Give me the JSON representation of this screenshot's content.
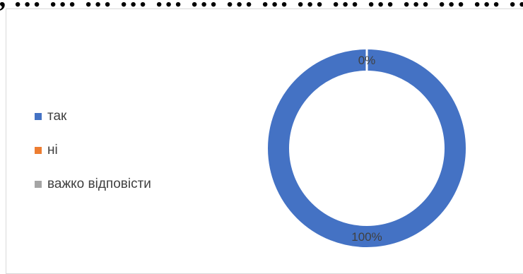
{
  "page": {
    "top_text": ", … … … … … … … … … … … … … … … … … … … … … … … … … … … … … … … … … … … … … … … … … … … … … … … … … … …"
  },
  "chart_data": {
    "type": "pie",
    "donut": true,
    "categories": [
      "так",
      "ні",
      "важко відповісти"
    ],
    "values": [
      100,
      0,
      0
    ],
    "data_labels": [
      "100%",
      "0%",
      "0%"
    ],
    "colors": [
      "#4472C4",
      "#ED7D31",
      "#A5A5A5"
    ],
    "legend_position": "left",
    "title": ""
  }
}
